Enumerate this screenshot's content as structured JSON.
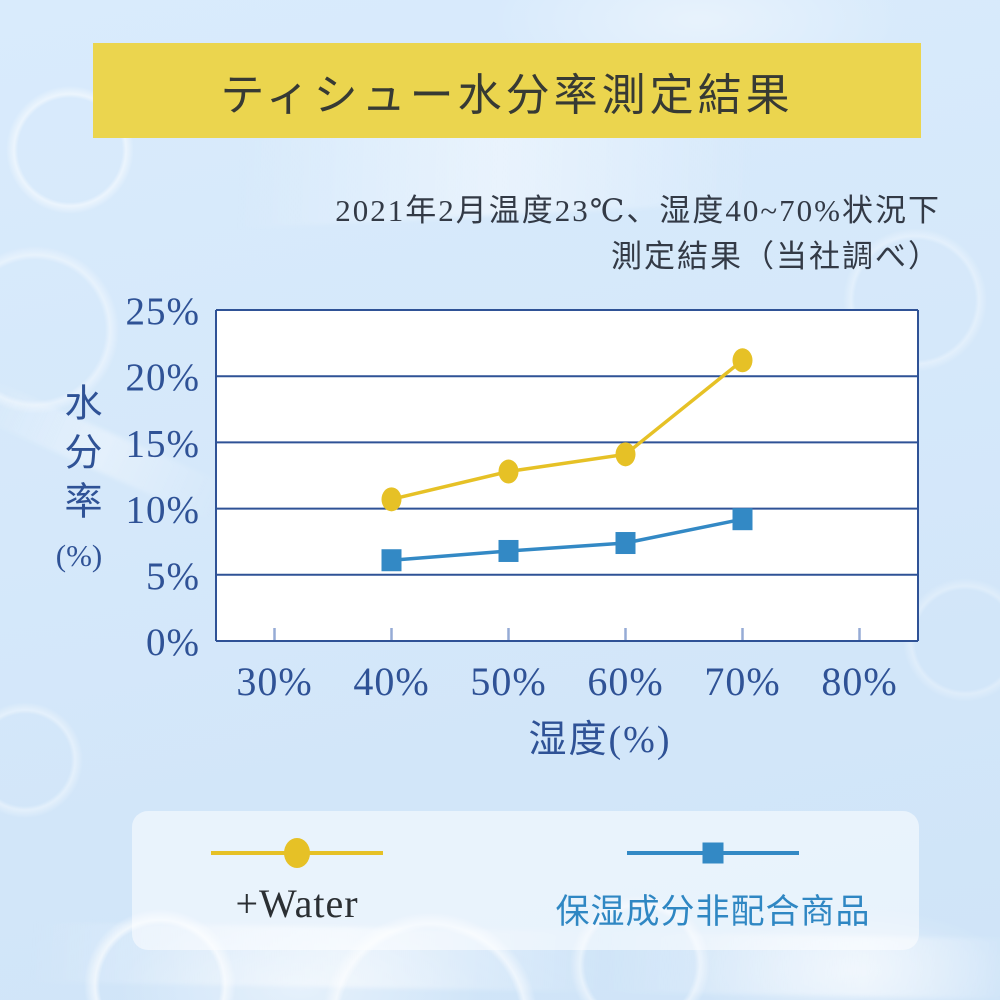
{
  "title": {
    "text": "ティシュー水分率測定結果"
  },
  "subtitle": {
    "line1": "2021年2月温度23℃、湿度40~70%状況下",
    "line2": "測定結果（当社調べ）"
  },
  "chart_data": {
    "type": "line",
    "x": [
      40,
      50,
      60,
      70
    ],
    "series": [
      {
        "id": "water",
        "name": "+Water",
        "marker": "circle",
        "color": "#e6c126",
        "values": [
          10.7,
          12.8,
          14.1,
          21.2
        ]
      },
      {
        "id": "no-moisturizer",
        "name": "保湿成分非配合商品",
        "marker": "square",
        "color": "#3389c5",
        "values": [
          6.1,
          6.8,
          7.4,
          9.2
        ]
      }
    ],
    "x_axis": {
      "label": "湿度(%)",
      "min": 25,
      "max": 85,
      "ticks": [
        30,
        40,
        50,
        60,
        70,
        80
      ],
      "tick_labels": [
        "30%",
        "40%",
        "50%",
        "60%",
        "70%",
        "80%"
      ]
    },
    "y_axis": {
      "label": "水分率(%)",
      "label_vertical": "水分率",
      "label_unit": "(%)",
      "min": 0,
      "max": 25,
      "ticks": [
        0,
        5,
        10,
        15,
        20,
        25
      ],
      "tick_labels": [
        "0%",
        "5%",
        "10%",
        "15%",
        "20%",
        "25%"
      ]
    },
    "grid": "horizontal",
    "legend_position": "bottom"
  },
  "colors": {
    "background": "#d5e7fa",
    "banner": "#ebd54e",
    "title_text": "#373a34",
    "subtitle_text": "#333a46",
    "axis": "#2f5296",
    "tick_mark": "#96abd5",
    "plot_background": "#ffffff",
    "series_water": "#e6c126",
    "series_no_moisturizer": "#3389c5",
    "legend_label_water": "#2b2f33",
    "legend_label_no_moisturizer": "#2f87c3"
  }
}
